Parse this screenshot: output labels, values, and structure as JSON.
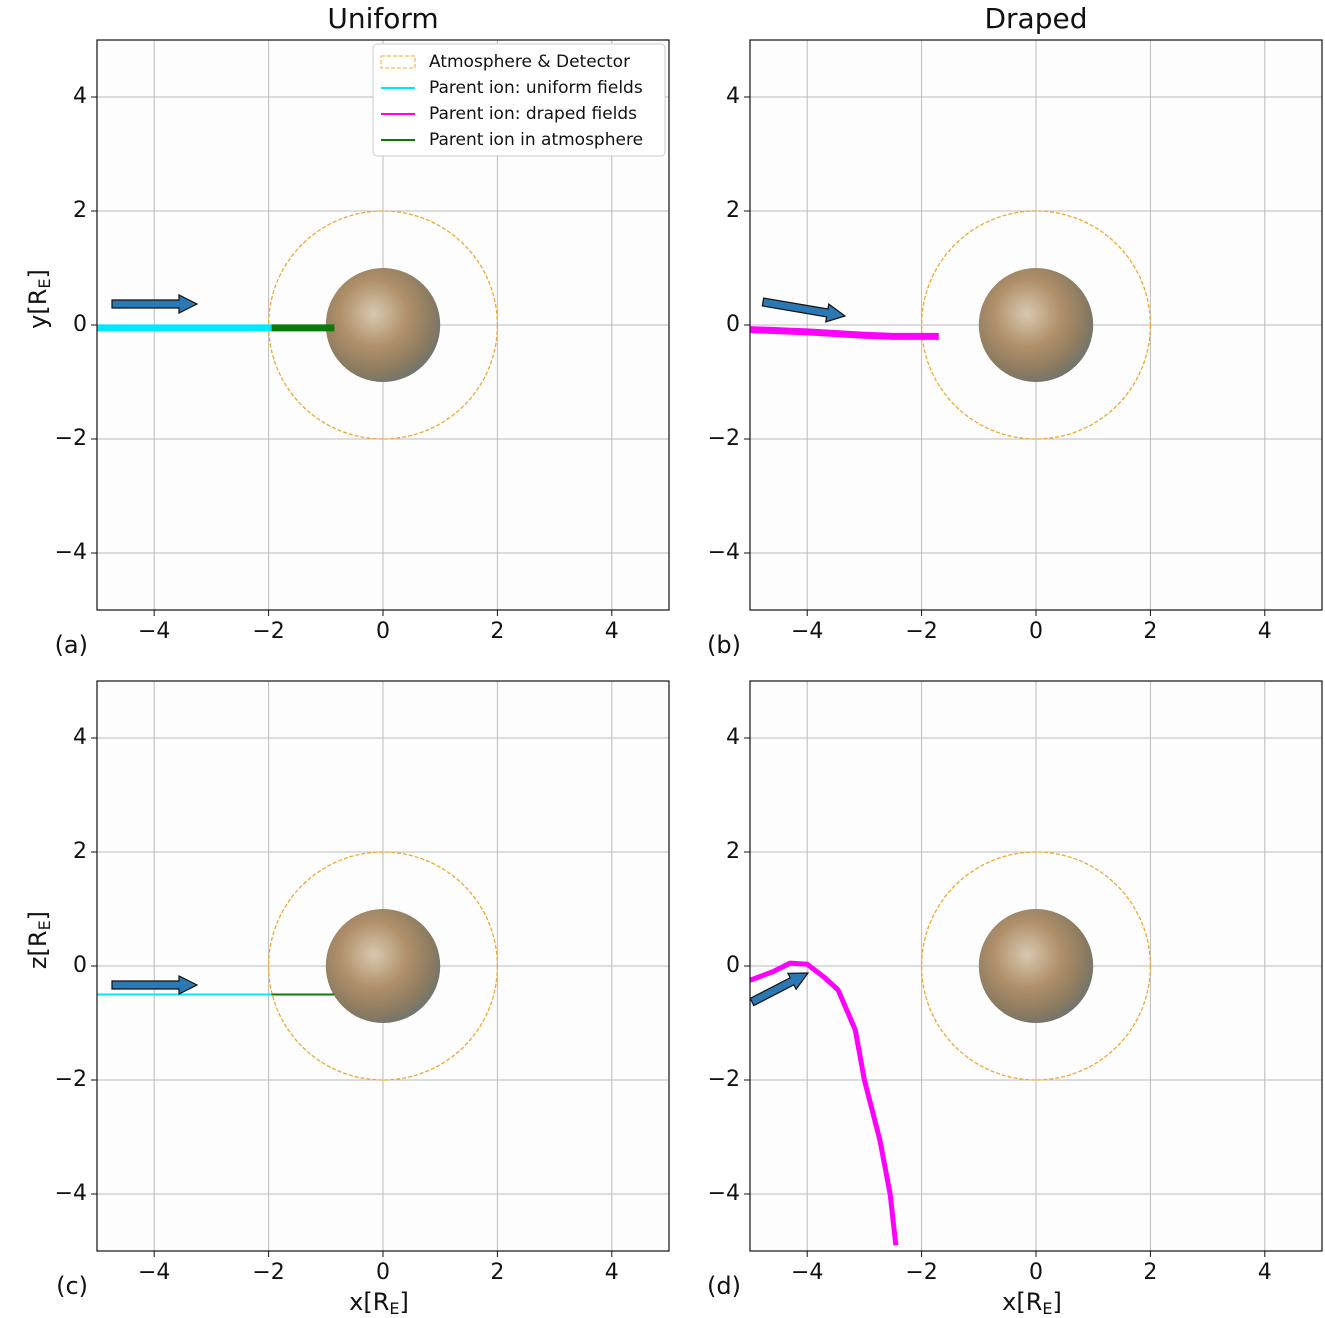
{
  "chart_data": [
    {
      "type": "line",
      "title": "Uniform",
      "panel_label": "(a)",
      "ylabel": [
        "y[R",
        "E",
        "]"
      ],
      "xlim": [
        -5,
        5
      ],
      "ylim": [
        -5,
        5
      ],
      "xticks": [
        {
          "value": -4,
          "label": "−4"
        },
        {
          "value": -2,
          "label": "−2"
        },
        0,
        2,
        4
      ],
      "yticks": [
        {
          "value": -4,
          "label": "−4"
        },
        {
          "value": -2,
          "label": "−2"
        },
        0,
        2,
        4
      ],
      "grid": true,
      "atmosphere_radius": 2,
      "atmosphere_color": "#f0a830",
      "moon_radius": 1,
      "series": [
        {
          "color": "#00e8ff",
          "linewidth": 7,
          "x": [
            -5,
            -1.95
          ],
          "y": [
            -0.05,
            -0.05
          ]
        },
        {
          "color": "#0a7a0a",
          "linewidth": 7,
          "x": [
            -1.95,
            -0.85
          ],
          "y": [
            -0.05,
            -0.05
          ]
        }
      ],
      "legend": {
        "loc": "upper right",
        "entries": [
          {
            "label": "Atmosphere & Detector",
            "color": "#f0a830",
            "style": "dashed-box"
          },
          {
            "label": "Parent ion: uniform fields",
            "color": "#00e8ff",
            "style": "line"
          },
          {
            "label": "Parent ion: draped fields",
            "color": "#ff00ff",
            "style": "line"
          },
          {
            "label": "Parent ion in atmosphere",
            "color": "#0a7a0a",
            "style": "line"
          }
        ]
      }
    },
    {
      "type": "line",
      "title": "Draped",
      "panel_label": "(b)",
      "xlim": [
        -5,
        5
      ],
      "ylim": [
        -5,
        5
      ],
      "xticks": [
        {
          "value": -4,
          "label": "−4"
        },
        {
          "value": -2,
          "label": "−2"
        },
        0,
        2,
        4
      ],
      "yticks": [
        {
          "value": -4,
          "label": "−4"
        },
        {
          "value": -2,
          "label": "−2"
        },
        0,
        2,
        4
      ],
      "grid": true,
      "atmosphere_radius": 2,
      "atmosphere_color": "#f0a830",
      "moon_radius": 1,
      "series": [
        {
          "color": "#ff00ff",
          "linewidth": 7,
          "x": [
            -5,
            -4,
            -3,
            -2.5,
            -1.7
          ],
          "y": [
            -0.08,
            -0.12,
            -0.18,
            -0.2,
            -0.2
          ]
        }
      ]
    },
    {
      "type": "line",
      "panel_label": "(c)",
      "ylabel": [
        "z[R",
        "E",
        "]"
      ],
      "xlabel": [
        "x[R",
        "E",
        "]"
      ],
      "xlim": [
        -5,
        5
      ],
      "ylim": [
        -5,
        5
      ],
      "xticks": [
        {
          "value": -4,
          "label": "−4"
        },
        {
          "value": -2,
          "label": "−2"
        },
        0,
        2,
        4
      ],
      "yticks": [
        {
          "value": -4,
          "label": "−4"
        },
        {
          "value": -2,
          "label": "−2"
        },
        0,
        2,
        4
      ],
      "grid": true,
      "atmosphere_radius": 2,
      "atmosphere_color": "#f0a830",
      "moon_radius": 1,
      "series": [
        {
          "color": "#00e8ff",
          "linewidth": 2,
          "x": [
            -5,
            -1.95
          ],
          "y": [
            -0.5,
            -0.5
          ]
        },
        {
          "color": "#0a7a0a",
          "linewidth": 2,
          "x": [
            -1.95,
            -0.85
          ],
          "y": [
            -0.5,
            -0.5
          ]
        }
      ]
    },
    {
      "type": "line",
      "panel_label": "(d)",
      "xlabel": [
        "x[R",
        "E",
        "]"
      ],
      "xlim": [
        -5,
        5
      ],
      "ylim": [
        -5,
        5
      ],
      "xticks": [
        {
          "value": -4,
          "label": "−4"
        },
        {
          "value": -2,
          "label": "−2"
        },
        0,
        2,
        4
      ],
      "yticks": [
        {
          "value": -4,
          "label": "−4"
        },
        {
          "value": -2,
          "label": "−2"
        },
        0,
        2,
        4
      ],
      "grid": true,
      "atmosphere_radius": 2,
      "atmosphere_color": "#f0a830",
      "moon_radius": 1,
      "series": [
        {
          "color": "#ff00ff",
          "linewidth": 5,
          "x": [
            -5,
            -4.6,
            -4.3,
            -4.0,
            -3.7,
            -3.46,
            -3.16,
            -3.0,
            -2.73,
            -2.55,
            -2.45
          ],
          "y": [
            -0.25,
            -0.1,
            0.05,
            0.03,
            -0.2,
            -0.42,
            -1.12,
            -2.0,
            -3.05,
            -4.0,
            -4.9
          ]
        }
      ]
    }
  ]
}
